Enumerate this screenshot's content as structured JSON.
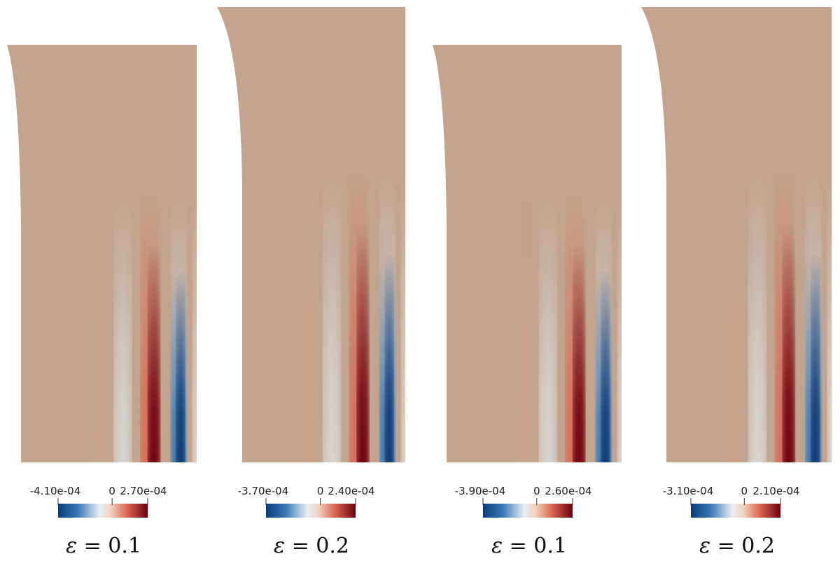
{
  "panels": [
    {
      "id": "p1",
      "colorbar": {
        "min_label": "-4.10e-04",
        "zero_label": "0",
        "max_label": "2.70e-04",
        "min": -0.00041,
        "max": 0.00027
      },
      "caption": {
        "symbol": "ε",
        "text": " = 0.1"
      }
    },
    {
      "id": "p2",
      "colorbar": {
        "min_label": "-3.70e-04",
        "zero_label": "0",
        "max_label": "2.40e-04",
        "min": -0.00037,
        "max": 0.00024
      },
      "caption": {
        "symbol": "ε",
        "text": " = 0.2"
      }
    },
    {
      "id": "p3",
      "colorbar": {
        "min_label": "-3.90e-04",
        "zero_label": "0",
        "max_label": "2.60e-04",
        "min": -0.00039,
        "max": 0.00026
      },
      "caption": {
        "symbol": "ε",
        "text": " = 0.1"
      }
    },
    {
      "id": "p4",
      "colorbar": {
        "min_label": "-3.10e-04",
        "zero_label": "0",
        "max_label": "2.10e-04",
        "min": -0.00031,
        "max": 0.00021
      },
      "caption": {
        "symbol": "ε",
        "text": " = 0.2"
      }
    }
  ],
  "colors": {
    "background_field": "#c2a38d",
    "cold": "#08306b",
    "cool": "#2f6ea9",
    "neutral": "#e4e4e4",
    "warm": "#d96a55",
    "hot": "#67000d"
  }
}
